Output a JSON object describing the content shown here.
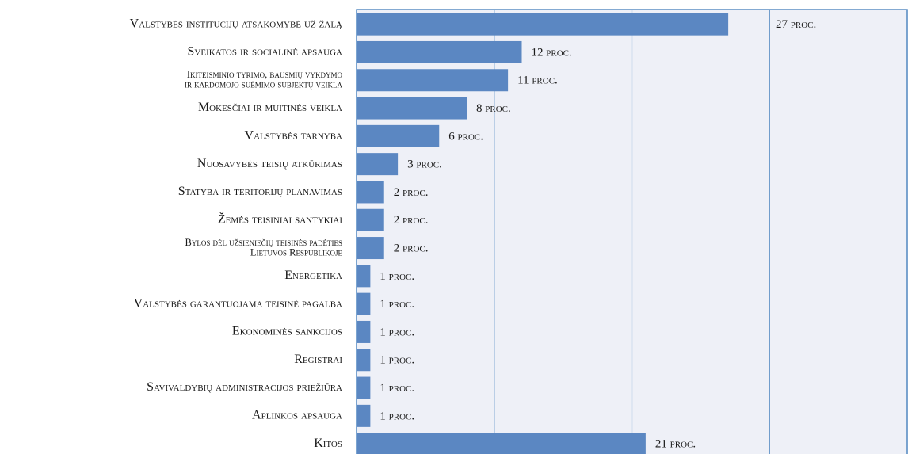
{
  "chart_data": {
    "type": "bar",
    "orientation": "horizontal",
    "categories": [
      "Valstybės institucijų atsakomybė už žalą",
      "Sveikatos ir socialinė apsauga",
      "Ikiteisminio tyrimo, bausmių vykdymo\nir kardomojo suėmimo subjektų veikla",
      "Mokesčiai ir muitinės veikla",
      "Valstybės tarnyba",
      "Nuosavybės teisių atkūrimas",
      "Statyba ir teritorijų planavimas",
      "Žemės teisiniai santykiai",
      "Bylos dėl užsieniečių teisinės padėties\nLietuvos Respublikoje",
      "Energetika",
      "Valstybės garantuojama teisinė pagalba",
      "Ekonominės sankcijos",
      "Registrai",
      "Savivaldybių administracijos priežiūra",
      "Aplinkos apsauga",
      "Kitos"
    ],
    "values": [
      27,
      12,
      11,
      8,
      6,
      3,
      2,
      2,
      2,
      1,
      1,
      1,
      1,
      1,
      1,
      21
    ],
    "value_labels": [
      "27 proc.",
      "12 proc.",
      "11 proc.",
      "8 proc.",
      "6 proc.",
      "3 proc.",
      "2 proc.",
      "2 proc.",
      "2 proc.",
      "1 proc.",
      "1 proc.",
      "1 proc.",
      "1 proc.",
      "1 proc.",
      "1 proc.",
      "21 proc."
    ],
    "color": "#5b87c2",
    "xlim": [
      0,
      40
    ],
    "xticks": [
      0,
      10,
      20,
      30,
      40
    ],
    "grid": true
  }
}
